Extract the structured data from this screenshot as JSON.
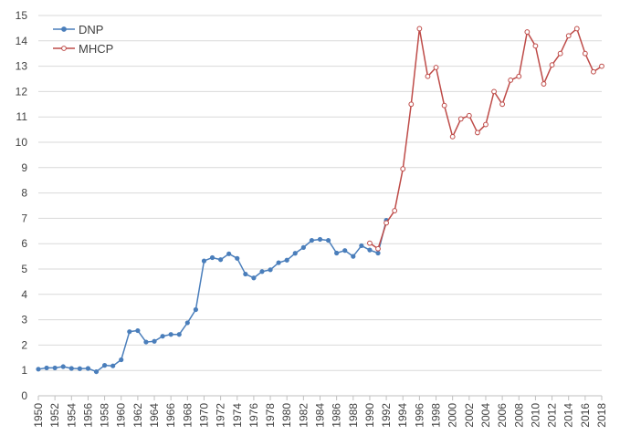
{
  "chart_data": {
    "type": "line",
    "xlim": [
      1950,
      2018
    ],
    "ylim": [
      0,
      15
    ],
    "y_ticks": [
      "0",
      "1",
      "2",
      "3",
      "4",
      "5",
      "6",
      "7",
      "8",
      "9",
      "10",
      "11",
      "12",
      "13",
      "14",
      "15"
    ],
    "x_ticks": [
      "1950",
      "1952",
      "1954",
      "1956",
      "1958",
      "1960",
      "1962",
      "1964",
      "1966",
      "1968",
      "1970",
      "1972",
      "1974",
      "1976",
      "1978",
      "1980",
      "1982",
      "1984",
      "1986",
      "1988",
      "1990",
      "1992",
      "1994",
      "1996",
      "1998",
      "2000",
      "2002",
      "2004",
      "2006",
      "2008",
      "2010",
      "2012",
      "2014",
      "2016",
      "2018"
    ],
    "grid": "horizontal",
    "legend_position": "top-left",
    "series": [
      {
        "name": "DNP",
        "color": "#4a7ebb",
        "marker": "filled-circle",
        "x": [
          1950,
          1951,
          1952,
          1953,
          1954,
          1955,
          1956,
          1957,
          1958,
          1959,
          1960,
          1961,
          1962,
          1963,
          1964,
          1965,
          1966,
          1967,
          1968,
          1969,
          1970,
          1971,
          1972,
          1973,
          1974,
          1975,
          1976,
          1977,
          1978,
          1979,
          1980,
          1981,
          1982,
          1983,
          1984,
          1985,
          1986,
          1987,
          1988,
          1989,
          1990,
          1991,
          1992
        ],
        "y": [
          1.05,
          1.1,
          1.1,
          1.15,
          1.08,
          1.07,
          1.08,
          0.95,
          1.2,
          1.18,
          1.42,
          2.53,
          2.57,
          2.12,
          2.15,
          2.35,
          2.42,
          2.42,
          2.88,
          3.4,
          5.32,
          5.45,
          5.37,
          5.6,
          5.42,
          4.8,
          4.65,
          4.9,
          4.97,
          5.25,
          5.35,
          5.62,
          5.85,
          6.13,
          6.17,
          6.13,
          5.63,
          5.73,
          5.5,
          5.92,
          5.75,
          5.63,
          6.92
        ]
      },
      {
        "name": "MHCP",
        "color": "#be4b48",
        "marker": "open-circle",
        "x": [
          1990,
          1991,
          1992,
          1993,
          1994,
          1995,
          1996,
          1997,
          1998,
          1999,
          2000,
          2001,
          2002,
          2003,
          2004,
          2005,
          2006,
          2007,
          2008,
          2009,
          2010,
          2011,
          2012,
          2013,
          2014,
          2015,
          2016,
          2017,
          2018
        ],
        "y": [
          6.02,
          5.8,
          6.82,
          7.3,
          8.95,
          11.5,
          14.48,
          12.6,
          12.95,
          11.45,
          10.22,
          10.92,
          11.05,
          10.38,
          10.7,
          12.0,
          11.5,
          12.45,
          12.6,
          14.35,
          13.8,
          12.3,
          13.05,
          13.5,
          14.2,
          14.48,
          13.5,
          12.78,
          13.0
        ]
      }
    ]
  }
}
